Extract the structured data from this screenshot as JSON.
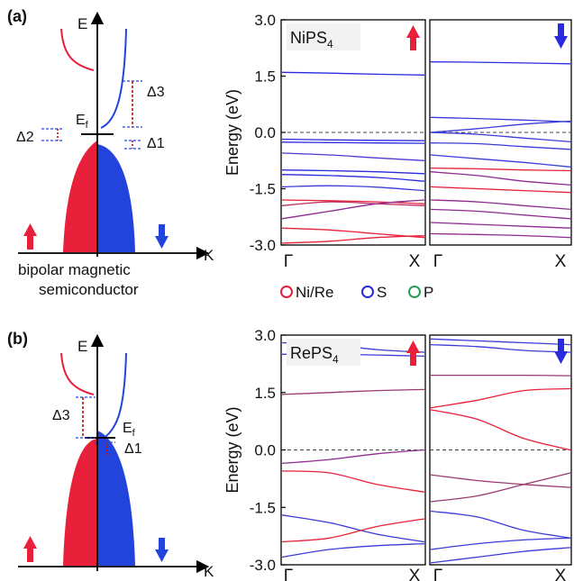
{
  "panels": [
    {
      "label": "(a)",
      "schematic": {
        "axis_y": "E",
        "axis_x": "K",
        "fermi_label": "E",
        "fermi_sub": "f",
        "gaps": [
          "Δ3",
          "Δ2",
          "Δ1"
        ],
        "caption_line1": "bipolar magnetic",
        "caption_line2": "semiconductor"
      },
      "material": "NiPS",
      "material_sub": "4",
      "chart_data": {
        "type": "line",
        "ylabel": "Energy (eV)",
        "ylim": [
          -3.0,
          3.0
        ],
        "yticks": [
          "3.0",
          "1.5",
          "0.0",
          "-1.5",
          "-3.0"
        ],
        "xticks": [
          "Γ",
          "X"
        ],
        "spin_up_bands": [
          {
            "color": "#2a2ae0",
            "y": [
              1.6,
              1.58,
              1.55,
              1.53
            ]
          },
          {
            "color": "#2a2ae0",
            "y": [
              -0.18,
              -0.2,
              -0.21,
              -0.22
            ]
          },
          {
            "color": "#2a2ae0",
            "y": [
              -0.26,
              -0.27,
              -0.28,
              -0.29
            ]
          },
          {
            "color": "#4a3ad0",
            "y": [
              -0.55,
              -0.6,
              -0.68,
              -0.75
            ]
          },
          {
            "color": "#2a2ae0",
            "y": [
              -1.0,
              -1.02,
              -1.05,
              -1.1
            ]
          },
          {
            "color": "#2a2ae0",
            "y": [
              -1.12,
              -1.15,
              -1.2,
              -1.3
            ]
          },
          {
            "color": "#3b3bd8",
            "y": [
              -1.45,
              -1.42,
              -1.46,
              -1.55
            ]
          },
          {
            "color": "#e8203a",
            "y": [
              -1.8,
              -1.82,
              -1.85,
              -1.9
            ]
          },
          {
            "color": "#c02a60",
            "y": [
              -1.95,
              -1.85,
              -1.9,
              -1.95
            ]
          },
          {
            "color": "#8e2a90",
            "y": [
              -2.3,
              -2.1,
              -1.9,
              -1.8
            ]
          },
          {
            "color": "#e8203a",
            "y": [
              -2.55,
              -2.6,
              -2.7,
              -2.8
            ]
          },
          {
            "color": "#e8203a",
            "y": [
              -2.95,
              -2.9,
              -2.8,
              -2.75
            ]
          }
        ],
        "spin_down_bands": [
          {
            "color": "#2a2ae0",
            "y": [
              1.88,
              1.87,
              1.85,
              1.83
            ]
          },
          {
            "color": "#3b3bd8",
            "y": [
              0.4,
              0.37,
              0.33,
              0.28
            ]
          },
          {
            "color": "#3b3bd8",
            "y": [
              0.0,
              0.1,
              0.22,
              0.3
            ]
          },
          {
            "color": "#3b3bd8",
            "y": [
              0.0,
              -0.05,
              -0.15,
              -0.25
            ]
          },
          {
            "color": "#3b3bd8",
            "y": [
              -0.28,
              -0.3,
              -0.38,
              -0.45
            ]
          },
          {
            "color": "#3b3bd8",
            "y": [
              -0.6,
              -0.7,
              -0.8,
              -0.92
            ]
          },
          {
            "color": "#e8203a",
            "y": [
              -0.95,
              -0.97,
              -1.0,
              -1.02
            ]
          },
          {
            "color": "#8e2a90",
            "y": [
              -1.05,
              -1.15,
              -1.3,
              -1.4
            ]
          },
          {
            "color": "#e8203a",
            "y": [
              -1.45,
              -1.5,
              -1.55,
              -1.6
            ]
          },
          {
            "color": "#8e2a90",
            "y": [
              -1.8,
              -1.85,
              -1.95,
              -2.05
            ]
          },
          {
            "color": "#8e2a90",
            "y": [
              -2.05,
              -2.1,
              -2.2,
              -2.3
            ]
          },
          {
            "color": "#8e2a90",
            "y": [
              -2.4,
              -2.45,
              -2.5,
              -2.55
            ]
          },
          {
            "color": "#8e2a90",
            "y": [
              -2.7,
              -2.72,
              -2.75,
              -2.8
            ]
          }
        ]
      }
    },
    {
      "label": "(b)",
      "schematic": {
        "axis_y": "E",
        "axis_x": "K",
        "fermi_label": "E",
        "fermi_sub": "f",
        "gaps": [
          "Δ3",
          "Δ1"
        ]
      },
      "material": "RePS",
      "material_sub": "4",
      "chart_data": {
        "type": "line",
        "ylabel": "Energy (eV)",
        "ylim": [
          -3.0,
          3.0
        ],
        "yticks": [
          "3.0",
          "1.5",
          "0.0",
          "-1.5",
          "-3.0"
        ],
        "xticks": [
          "Γ",
          "X"
        ],
        "spin_up_bands": [
          {
            "color": "#3b3bd8",
            "y": [
              2.8,
              2.75,
              2.62,
              2.55
            ]
          },
          {
            "color": "#3b3bd8",
            "y": [
              2.5,
              2.5,
              2.48,
              2.45
            ]
          },
          {
            "color": "#9a3a70",
            "y": [
              1.45,
              1.5,
              1.55,
              1.58
            ]
          },
          {
            "color": "#8e2a90",
            "y": [
              -0.35,
              -0.25,
              -0.1,
              0.0
            ]
          },
          {
            "color": "#e8203a",
            "y": [
              -0.55,
              -0.6,
              -0.9,
              -1.1
            ]
          },
          {
            "color": "#3b3bd8",
            "y": [
              -1.7,
              -1.9,
              -2.2,
              -2.4
            ]
          },
          {
            "color": "#e8203a",
            "y": [
              -2.4,
              -2.3,
              -2.0,
              -1.8
            ]
          },
          {
            "color": "#3b3bd8",
            "y": [
              -2.8,
              -2.6,
              -2.5,
              -2.45
            ]
          }
        ],
        "spin_down_bands": [
          {
            "color": "#3b3bd8",
            "y": [
              2.9,
              2.85,
              2.8,
              2.75
            ]
          },
          {
            "color": "#3b3bd8",
            "y": [
              2.75,
              2.7,
              2.6,
              2.55
            ]
          },
          {
            "color": "#9a3a70",
            "y": [
              1.95,
              1.95,
              1.95,
              1.94
            ]
          },
          {
            "color": "#e8203a",
            "y": [
              1.1,
              1.3,
              1.55,
              1.6
            ]
          },
          {
            "color": "#e8203a",
            "y": [
              1.05,
              0.8,
              0.3,
              0.0
            ]
          },
          {
            "color": "#9a3a70",
            "y": [
              -0.65,
              -0.8,
              -0.9,
              -0.98
            ]
          },
          {
            "color": "#9a3a70",
            "y": [
              -1.35,
              -1.2,
              -0.9,
              -0.6
            ]
          },
          {
            "color": "#3b3bd8",
            "y": [
              -1.6,
              -1.75,
              -2.1,
              -2.3
            ]
          },
          {
            "color": "#3b3bd8",
            "y": [
              -2.6,
              -2.45,
              -2.35,
              -2.3
            ]
          },
          {
            "color": "#3b3bd8",
            "y": [
              -2.95,
              -2.8,
              -2.65,
              -2.55
            ]
          }
        ]
      }
    }
  ],
  "legend": [
    {
      "label": "Ni/Re",
      "color": "#e8203a"
    },
    {
      "label": "S",
      "color": "#2a2ae0"
    },
    {
      "label": "P",
      "color": "#2aa050"
    }
  ],
  "colors": {
    "spin_up": "#e8203a",
    "spin_down": "#2a2ae0",
    "fermi": "#444444"
  },
  "icons": {
    "up": "up-arrow-icon",
    "down": "down-arrow-icon"
  }
}
